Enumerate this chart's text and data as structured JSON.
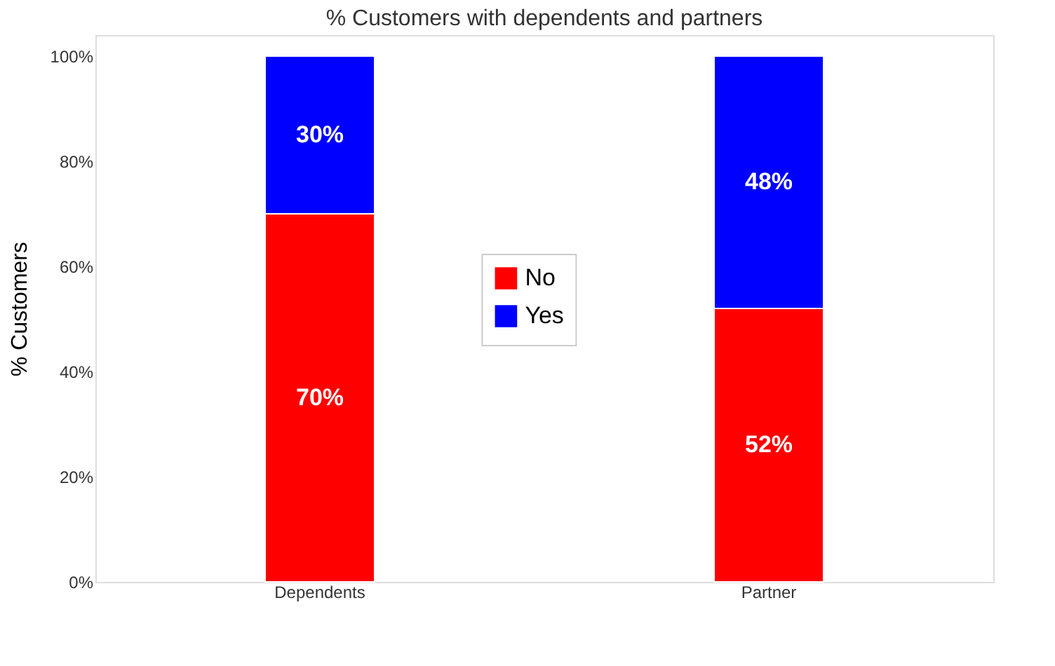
{
  "chart_data": {
    "type": "bar",
    "stacked": true,
    "title": "% Customers with dependents and partners",
    "ylabel": "% Customers",
    "categories": [
      "Dependents",
      "Partner"
    ],
    "series": [
      {
        "name": "No",
        "color": "#ff0000",
        "values": [
          70,
          52
        ],
        "value_labels": [
          "70%",
          "52%"
        ]
      },
      {
        "name": "Yes",
        "color": "#0000ff",
        "values": [
          30,
          48
        ],
        "value_labels": [
          "30%",
          "48%"
        ]
      }
    ],
    "ylim": [
      0,
      104
    ],
    "yticks": [
      {
        "value": 0,
        "label": "0%"
      },
      {
        "value": 20,
        "label": "20%"
      },
      {
        "value": 40,
        "label": "40%"
      },
      {
        "value": 60,
        "label": "60%"
      },
      {
        "value": 80,
        "label": "80%"
      },
      {
        "value": 100,
        "label": "100%"
      }
    ],
    "legend": "center",
    "grid": false
  }
}
